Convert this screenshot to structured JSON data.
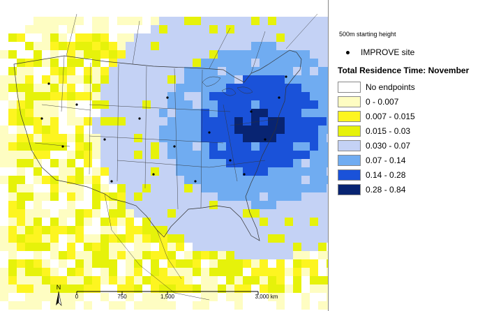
{
  "map": {
    "north_label": "N",
    "scale_labels": [
      "0",
      "750",
      "1,500",
      "3,000 km"
    ],
    "scale_values": [
      0,
      750,
      1500,
      3000
    ],
    "site_color": "#000000",
    "water_color": "#ffffff"
  },
  "legend": {
    "start_height": "500m starting height",
    "site_label": "IMPROVE site",
    "title": "Total Residence Time: November",
    "classes": [
      {
        "label": "No endpoints",
        "color": "#ffffff"
      },
      {
        "label": "0 - 0.007",
        "color": "#fefdc2"
      },
      {
        "label": "0.007 - 0.015",
        "color": "#fdf520"
      },
      {
        "label": "0.015 - 0.03",
        "color": "#e6f20a"
      },
      {
        "label": "0.030 - 0.07",
        "color": "#c4d2f5"
      },
      {
        "label": "0.07 - 0.14",
        "color": "#70acf1"
      },
      {
        "label": "0.14 - 0.28",
        "color": "#1a52d9"
      },
      {
        "label": "0.28 - 0.84",
        "color": "#082472"
      }
    ]
  }
}
